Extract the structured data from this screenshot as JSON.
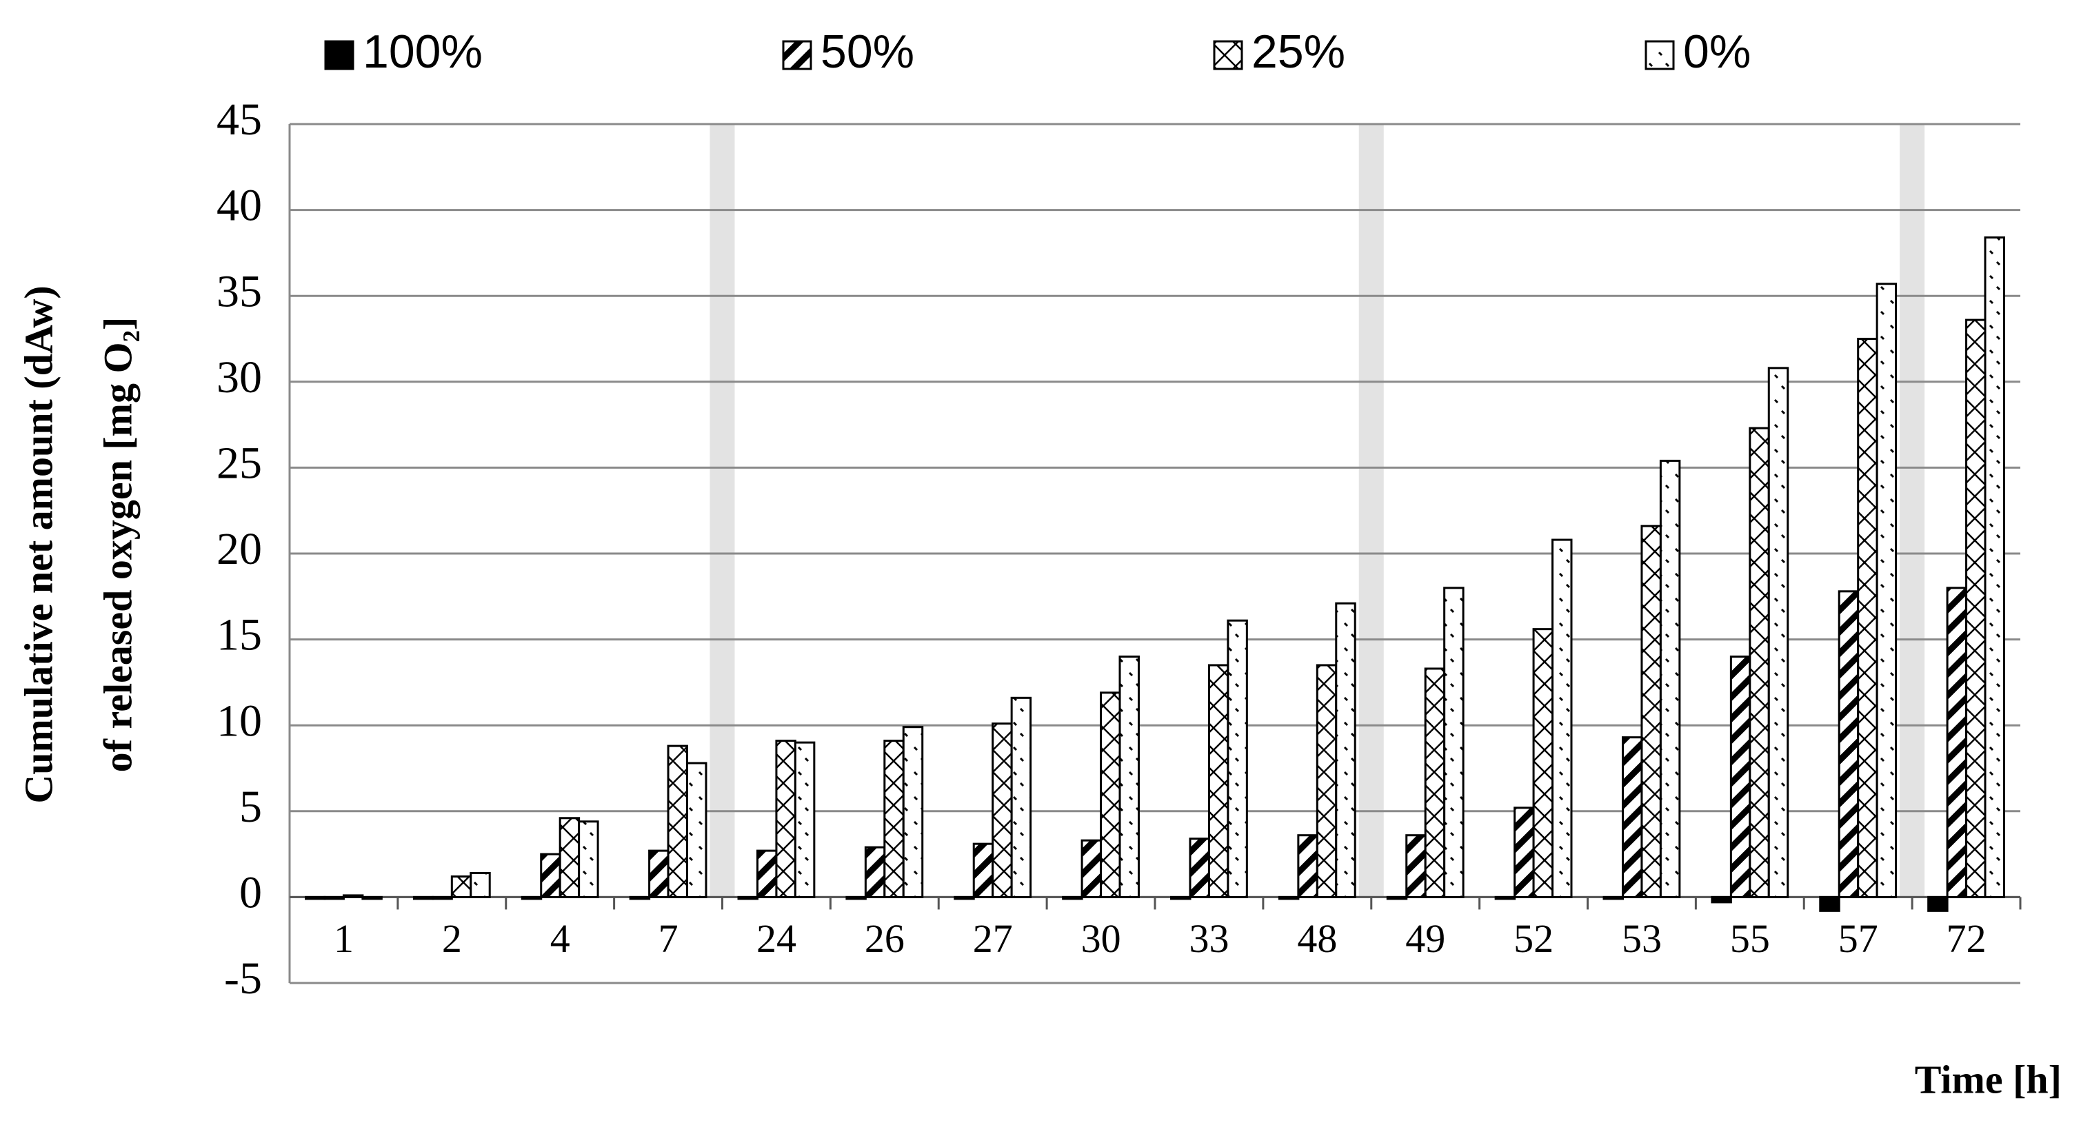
{
  "chart_data": {
    "type": "bar",
    "title_lines": null,
    "ylabel": [
      "Cumulative net amount (dAw)",
      "of released oxygen [mg O₂]"
    ],
    "xlabel": "Time [h]",
    "categories": [
      "1",
      "2",
      "4",
      "7",
      "24",
      "26",
      "27",
      "30",
      "33",
      "48",
      "49",
      "52",
      "53",
      "55",
      "57",
      "72"
    ],
    "series": [
      {
        "name": "100%",
        "color": "#000000",
        "values": [
          -0.1,
          -0.1,
          -0.1,
          -0.1,
          -0.1,
          -0.1,
          -0.1,
          -0.1,
          -0.1,
          -0.1,
          -0.1,
          -0.1,
          -0.1,
          -0.3,
          -0.8,
          -0.8
        ]
      },
      {
        "name": "50%",
        "color": "#000000",
        "values": [
          -0.1,
          -0.1,
          2.5,
          2.7,
          2.7,
          2.9,
          3.1,
          3.3,
          3.4,
          3.6,
          3.6,
          5.2,
          9.3,
          14.0,
          17.8,
          18.0
        ]
      },
      {
        "name": "25%",
        "color": "#000000",
        "values": [
          0.1,
          1.2,
          4.6,
          8.8,
          9.1,
          9.1,
          10.1,
          11.9,
          13.5,
          13.5,
          13.3,
          15.6,
          21.6,
          27.3,
          32.5,
          33.6
        ]
      },
      {
        "name": "0%",
        "color": "#000000",
        "values": [
          -0.1,
          1.4,
          4.4,
          7.8,
          9.0,
          9.9,
          11.6,
          14.0,
          16.1,
          17.1,
          18.0,
          20.8,
          25.4,
          30.8,
          35.7,
          38.4
        ]
      }
    ],
    "ylim": [
      -5,
      45
    ],
    "yticks": [
      -5,
      0,
      5,
      10,
      15,
      20,
      25,
      30,
      35,
      40,
      45
    ],
    "grid": true
  }
}
